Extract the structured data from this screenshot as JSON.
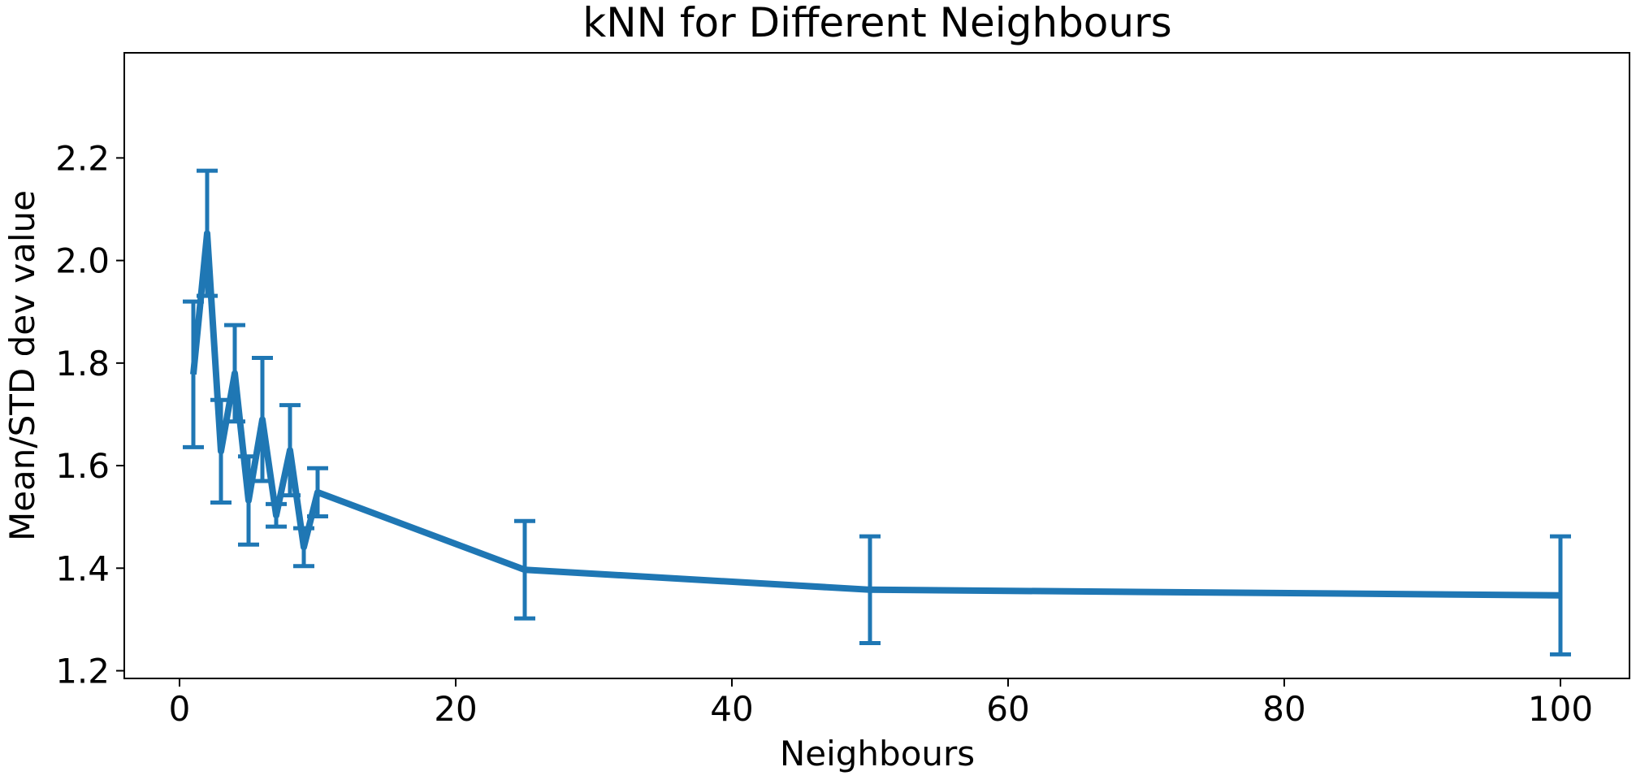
{
  "chart_data": {
    "type": "line",
    "title": "kNN for Different Neighbours",
    "xlabel": "Neighbours",
    "ylabel": "Mean/STD dev value",
    "xlim": [
      -4,
      105
    ],
    "ylim": [
      1.185,
      2.405
    ],
    "xticks": [
      0,
      20,
      40,
      60,
      80,
      100
    ],
    "yticks": [
      1.2,
      1.4,
      1.6,
      1.8,
      2.0,
      2.2
    ],
    "ytick_labels": [
      "1.2",
      "1.4",
      "1.6",
      "1.8",
      "2.0",
      "2.2"
    ],
    "grid": false,
    "color": "#1f77b4",
    "series": [
      {
        "x": [
          1,
          2,
          3,
          4,
          5,
          6,
          7,
          8,
          9,
          10,
          25,
          50,
          100
        ],
        "y": [
          1.778,
          2.053,
          1.628,
          1.78,
          1.532,
          1.69,
          1.503,
          1.63,
          1.441,
          1.548,
          1.397,
          1.358,
          1.347
        ],
        "yerr": [
          0.142,
          0.122,
          0.1,
          0.094,
          0.086,
          0.12,
          0.022,
          0.088,
          0.037,
          0.047,
          0.095,
          0.104,
          0.115
        ]
      }
    ]
  }
}
